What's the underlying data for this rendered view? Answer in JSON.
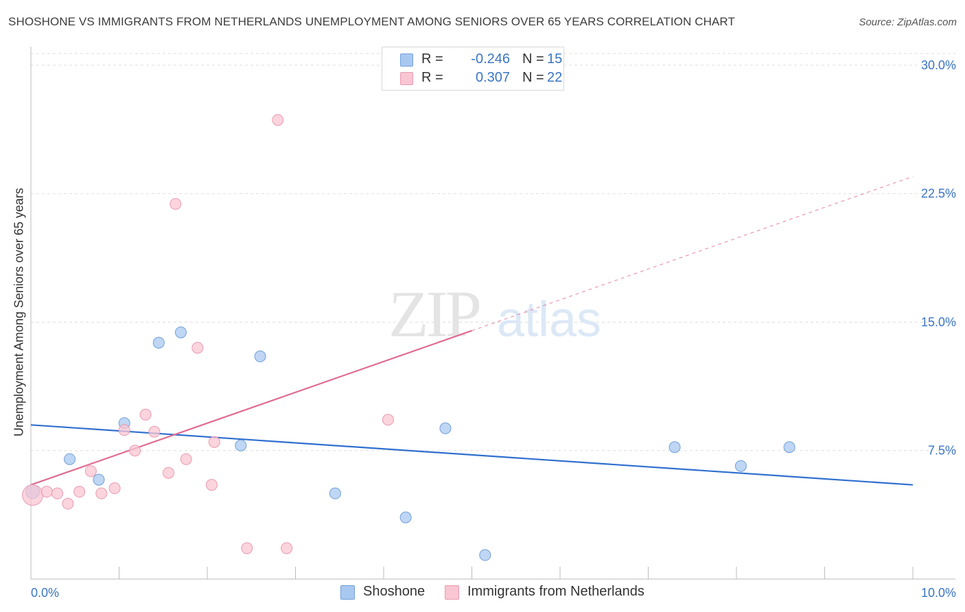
{
  "title": "SHOSHONE VS IMMIGRANTS FROM NETHERLANDS UNEMPLOYMENT AMONG SENIORS OVER 65 YEARS CORRELATION CHART",
  "source": "Source: ZipAtlas.com",
  "watermark": {
    "zip": "ZIP",
    "atlas": "atlas"
  },
  "legend": {
    "rows": [
      {
        "r_label": "R =",
        "r_value": "-0.246",
        "n_label": "N =",
        "n_value": "15",
        "color": "#a9c8f0",
        "border": "#6f9fd8"
      },
      {
        "r_label": "R =",
        "r_value": "0.307",
        "n_label": "N =",
        "n_value": "22",
        "color": "#f9c6d3",
        "border": "#e89ab0"
      }
    ]
  },
  "bottom_legend": [
    {
      "label": "Shoshone",
      "color": "#a9c8f0",
      "border": "#6f9fd8"
    },
    {
      "label": "Immigrants from Netherlands",
      "color": "#f9c6d3",
      "border": "#e89ab0"
    }
  ],
  "chart_data": {
    "type": "scatter",
    "title": "SHOSHONE VS IMMIGRANTS FROM NETHERLANDS UNEMPLOYMENT AMONG SENIORS OVER 65 YEARS CORRELATION CHART",
    "xlabel": "",
    "ylabel": "Unemployment Among Seniors over 65 years",
    "xlim": [
      0,
      10
    ],
    "ylim": [
      0,
      31
    ],
    "x_tick_labels": [
      "0.0%",
      "10.0%"
    ],
    "y_ticks": [
      7.5,
      15.0,
      22.5,
      30.0
    ],
    "y_tick_labels": [
      "7.5%",
      "15.0%",
      "22.5%",
      "30.0%"
    ],
    "grid": "horizontal dashed",
    "legend_position": "top-center",
    "series": [
      {
        "name": "Shoshone",
        "color": "#6f9fd8",
        "fill": "#a9c8f0",
        "line_color": "#2f6fcf",
        "points": [
          [
            0.02,
            5.1
          ],
          [
            0.44,
            7.0
          ],
          [
            0.77,
            5.8
          ],
          [
            1.06,
            9.1
          ],
          [
            1.45,
            13.8
          ],
          [
            1.7,
            14.4
          ],
          [
            2.38,
            7.8
          ],
          [
            2.6,
            13.0
          ],
          [
            3.45,
            5.0
          ],
          [
            4.25,
            3.6
          ],
          [
            4.7,
            8.8
          ],
          [
            5.15,
            1.4
          ],
          [
            7.3,
            7.7
          ],
          [
            8.05,
            6.6
          ],
          [
            8.6,
            7.7
          ]
        ],
        "trend": {
          "x": [
            0,
            10
          ],
          "y": [
            9.0,
            5.5
          ]
        }
      },
      {
        "name": "Immigrants from Netherlands",
        "color": "#e89ab0",
        "fill": "#f9c6d3",
        "line_color": "#e06b92",
        "points": [
          [
            0.02,
            4.9
          ],
          [
            0.18,
            5.1
          ],
          [
            0.3,
            5.0
          ],
          [
            0.42,
            4.4
          ],
          [
            0.55,
            5.1
          ],
          [
            0.68,
            6.3
          ],
          [
            0.8,
            5.0
          ],
          [
            0.95,
            5.3
          ],
          [
            1.06,
            8.7
          ],
          [
            1.18,
            7.5
          ],
          [
            1.3,
            9.6
          ],
          [
            1.4,
            8.6
          ],
          [
            1.56,
            6.2
          ],
          [
            1.64,
            21.9
          ],
          [
            1.76,
            7.0
          ],
          [
            1.89,
            13.5
          ],
          [
            2.05,
            5.5
          ],
          [
            2.08,
            8.0
          ],
          [
            2.45,
            1.8
          ],
          [
            2.8,
            26.8
          ],
          [
            2.9,
            1.8
          ],
          [
            4.05,
            9.3
          ]
        ],
        "trend": {
          "x": [
            0,
            5
          ],
          "y": [
            5.5,
            14.5
          ]
        },
        "trend_extension": {
          "x": [
            5,
            10
          ],
          "y": [
            14.5,
            23.5
          ]
        }
      }
    ]
  }
}
